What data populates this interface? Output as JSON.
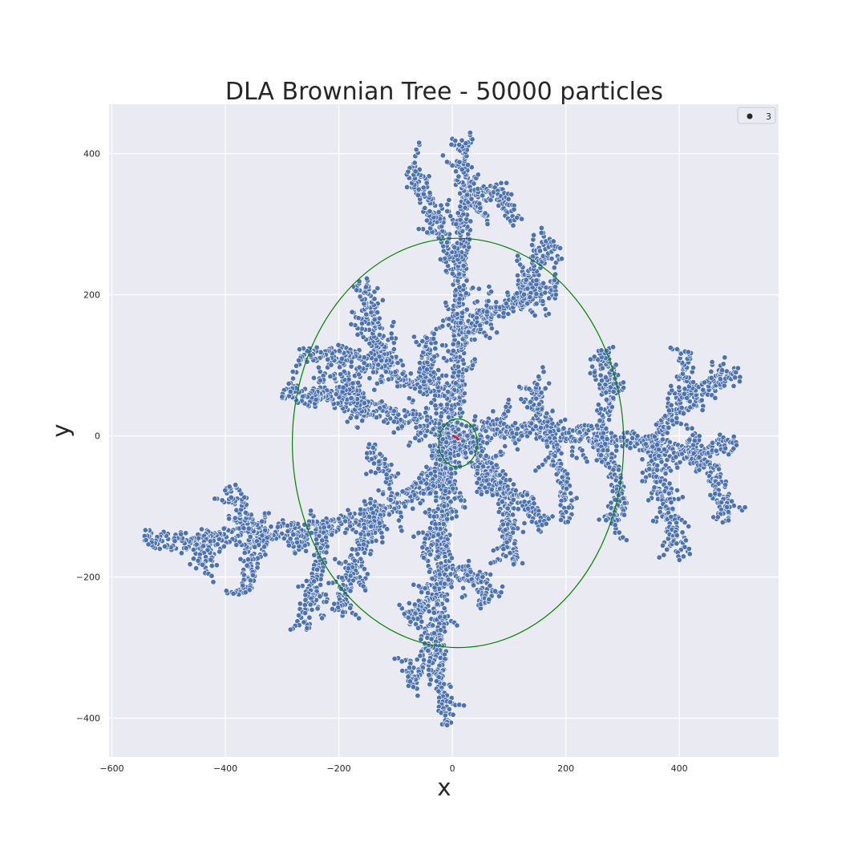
{
  "chart_data": {
    "type": "scatter",
    "title": "DLA Brownian Tree - 50000 particles",
    "xlabel": "x",
    "ylabel": "y",
    "xlim": [
      -605,
      575
    ],
    "ylim": [
      -455,
      470
    ],
    "x_ticks": [
      -600,
      -400,
      -200,
      0,
      200,
      400
    ],
    "y_ticks": [
      -400,
      -200,
      0,
      200,
      400
    ],
    "x_tick_labels": [
      "−600",
      "−400",
      "−200",
      "0",
      "200",
      "400"
    ],
    "y_tick_labels": [
      "−400",
      "−200",
      "0",
      "200",
      "400"
    ],
    "grid": true,
    "background": "#eaeaf2",
    "legend": {
      "placement": "top-right",
      "entries": [
        {
          "label": "3",
          "color": "#262626"
        }
      ]
    },
    "series": [
      {
        "name": "3",
        "color": "#4c72b0",
        "description_of_shape": "dendritic aggregate",
        "branches": [
          [
            [
              0,
              0
            ],
            [
              12,
              60
            ],
            [
              10,
              150
            ],
            [
              15,
              240
            ],
            [
              22,
              330
            ],
            [
              10,
              420
            ]
          ],
          [
            [
              15,
              240
            ],
            [
              -30,
              300
            ],
            [
              -60,
              360
            ],
            [
              -75,
              380
            ]
          ],
          [
            [
              22,
              330
            ],
            [
              60,
              345
            ],
            [
              100,
              335
            ]
          ],
          [
            [
              10,
              150
            ],
            [
              60,
              170
            ],
            [
              120,
              190
            ],
            [
              185,
              210
            ]
          ],
          [
            [
              120,
              190
            ],
            [
              150,
              250
            ],
            [
              175,
              275
            ]
          ],
          [
            [
              12,
              60
            ],
            [
              -50,
              70
            ],
            [
              -110,
              100
            ],
            [
              -140,
              160
            ],
            [
              -160,
              220
            ]
          ],
          [
            [
              -110,
              100
            ],
            [
              -180,
              110
            ],
            [
              -270,
              115
            ]
          ],
          [
            [
              -50,
              70
            ],
            [
              -40,
              140
            ]
          ],
          [
            [
              0,
              0
            ],
            [
              -60,
              20
            ],
            [
              -150,
              40
            ],
            [
              -240,
              55
            ],
            [
              -300,
              65
            ]
          ],
          [
            [
              -150,
              40
            ],
            [
              -200,
              85
            ]
          ],
          [
            [
              0,
              0
            ],
            [
              80,
              10
            ],
            [
              170,
              5
            ],
            [
              260,
              0
            ],
            [
              350,
              -10
            ],
            [
              420,
              -30
            ],
            [
              500,
              -10
            ]
          ],
          [
            [
              350,
              -10
            ],
            [
              400,
              40
            ],
            [
              470,
              80
            ],
            [
              505,
              85
            ]
          ],
          [
            [
              350,
              -10
            ],
            [
              380,
              -110
            ],
            [
              410,
              -170
            ]
          ],
          [
            [
              420,
              -30
            ],
            [
              470,
              -60
            ],
            [
              480,
              -120
            ]
          ],
          [
            [
              260,
              0
            ],
            [
              280,
              80
            ],
            [
              270,
              125
            ]
          ],
          [
            [
              170,
              5
            ],
            [
              140,
              70
            ]
          ],
          [
            [
              170,
              5
            ],
            [
              200,
              -80
            ],
            [
              200,
              -120
            ]
          ],
          [
            [
              260,
              0
            ],
            [
              300,
              -90
            ],
            [
              280,
              -125
            ]
          ],
          [
            [
              420,
              50
            ],
            [
              410,
              120
            ]
          ],
          [
            [
              0,
              0
            ],
            [
              -50,
              -70
            ],
            [
              -130,
              -110
            ],
            [
              -220,
              -130
            ],
            [
              -330,
              -140
            ],
            [
              -430,
              -145
            ],
            [
              -540,
              -150
            ]
          ],
          [
            [
              -330,
              -140
            ],
            [
              -360,
              -200
            ],
            [
              -370,
              -220
            ]
          ],
          [
            [
              -220,
              -130
            ],
            [
              -250,
              -230
            ],
            [
              -265,
              -270
            ]
          ],
          [
            [
              -430,
              -145
            ],
            [
              -440,
              -190
            ]
          ],
          [
            [
              -130,
              -110
            ],
            [
              -180,
              -190
            ],
            [
              -200,
              -250
            ]
          ],
          [
            [
              -350,
              -140
            ],
            [
              -390,
              -70
            ]
          ],
          [
            [
              -100,
              -60
            ],
            [
              -150,
              -20
            ]
          ],
          [
            [
              0,
              0
            ],
            [
              -10,
              -100
            ],
            [
              -20,
              -200
            ],
            [
              -25,
              -300
            ],
            [
              -10,
              -410
            ]
          ],
          [
            [
              -20,
              -200
            ],
            [
              -80,
              -260
            ]
          ],
          [
            [
              -10,
              -100
            ],
            [
              -50,
              -170
            ]
          ],
          [
            [
              -25,
              -300
            ],
            [
              -80,
              -340
            ]
          ],
          [
            [
              -20,
              -200
            ],
            [
              30,
              -190
            ],
            [
              70,
              -230
            ]
          ],
          [
            [
              0,
              0
            ],
            [
              70,
              -50
            ],
            [
              100,
              -120
            ],
            [
              105,
              -180
            ]
          ],
          [
            [
              70,
              -50
            ],
            [
              140,
              -100
            ],
            [
              160,
              -130
            ]
          ],
          [
            [
              0,
              0
            ],
            [
              -40,
              -80
            ]
          ],
          [
            [
              40,
              -40
            ],
            [
              60,
              -80
            ]
          ]
        ]
      }
    ],
    "overlays": [
      {
        "type": "ellipse",
        "color": "#008000",
        "cx": 10,
        "cy": -10,
        "rx": 292,
        "ry": 290
      },
      {
        "type": "ellipse",
        "color": "#008000",
        "cx": 10,
        "cy": -10,
        "rx": 34,
        "ry": 34
      },
      {
        "type": "line",
        "color": "#ff0000",
        "points": [
          [
            0,
            0
          ],
          [
            8,
            -2
          ],
          [
            12,
            -6
          ]
        ]
      }
    ]
  }
}
